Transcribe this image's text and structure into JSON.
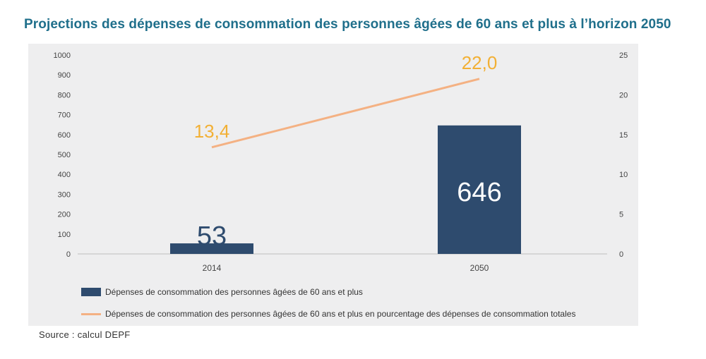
{
  "title": "Projections des dépenses de consommation des personnes âgées de 60 ans et plus à l’horizon 2050",
  "source": "Source : calcul DEPF",
  "colors": {
    "bar": "#2e4b6e",
    "line": "#f4b183",
    "line_label": "#f2b035",
    "title": "#1f6f8b",
    "panel": "#eeeeef"
  },
  "chart_data": {
    "type": "bar",
    "categories": [
      "2014",
      "2050"
    ],
    "series": [
      {
        "name": "Dépenses de consommation des personnes âgées de 60 ans et plus",
        "type": "bar",
        "axis": "left",
        "values": [
          53,
          646
        ],
        "labels": [
          "53",
          "646"
        ]
      },
      {
        "name": "Dépenses de consommation des personnes âgées de 60 ans et plus en pourcentage des dépenses de consommation totales",
        "type": "line",
        "axis": "right",
        "values": [
          13.4,
          22.0
        ],
        "labels": [
          "13,4",
          "22,0"
        ]
      }
    ],
    "y_left": {
      "min": 0,
      "max": 1000,
      "ticks": [
        "0",
        "100",
        "200",
        "300",
        "400",
        "500",
        "600",
        "700",
        "800",
        "900",
        "1000"
      ]
    },
    "y_right": {
      "min": 0,
      "max": 25,
      "ticks": [
        "0",
        "5",
        "10",
        "15",
        "20",
        "25"
      ]
    },
    "legend_position": "bottom-left"
  }
}
